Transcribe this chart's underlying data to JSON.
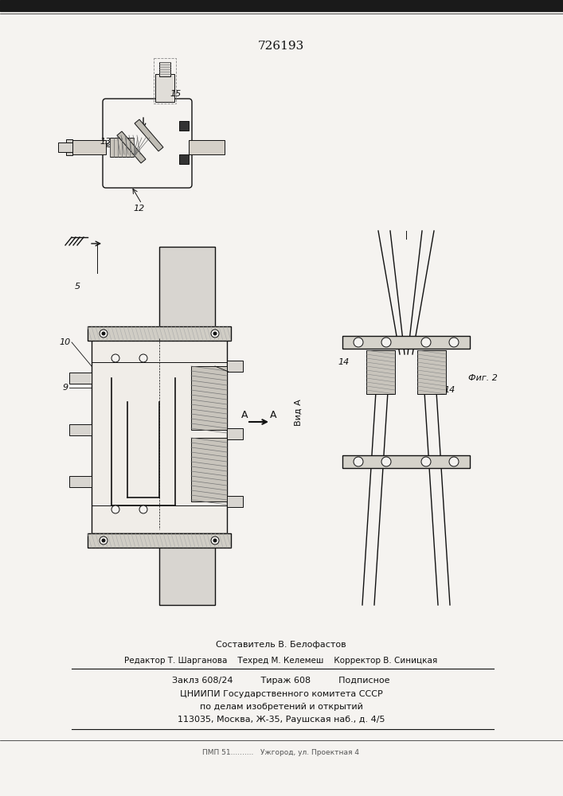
{
  "patent_number": "726193",
  "bg_color": "#f5f3f0",
  "header_bar_color": "#1a1a1a",
  "footer_texts": [
    "Составитель В. Белофастов",
    "Редактор Т. Шарганова    Техред М. Келемеш    Корректор В. Синицкая",
    "Заклз 608/24          Тираж 608          Подписное",
    "ЦНИИПИ Государственного комитета СССР",
    "по делам изобретений и открытий",
    "113035, Москва, Ж-35, Раушская наб., д. 4/5"
  ],
  "line_color": "#111111"
}
